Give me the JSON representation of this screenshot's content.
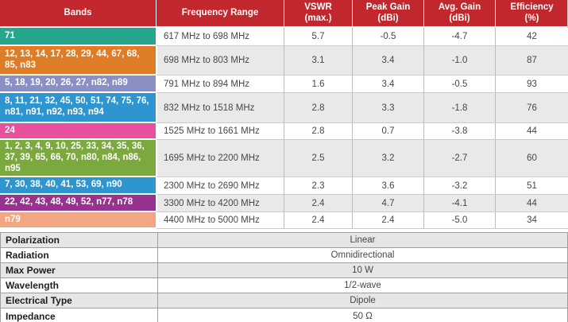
{
  "table": {
    "header_bg": "#c1272d",
    "header": [
      "Bands",
      "Frequency Range",
      "VSWR\n(max.)",
      "Peak Gain\n(dBi)",
      "Avg. Gain\n(dBi)",
      "Efficiency\n(%)"
    ],
    "rows": [
      {
        "bands": "71",
        "color": "#26a68c",
        "freq": "617 MHz to 698 MHz",
        "vswr": "5.7",
        "peak_gain": "-0.5",
        "avg_gain": "-4.7",
        "efficiency": "42"
      },
      {
        "bands": "12, 13, 14, 17, 28, 29, 44, 67, 68, 85, n83",
        "color": "#df7d26",
        "freq": "698 MHz to 803 MHz",
        "vswr": "3.1",
        "peak_gain": "3.4",
        "avg_gain": "-1.0",
        "efficiency": "87"
      },
      {
        "bands": "5, 18, 19, 20, 26, 27, n82, n89",
        "color": "#8a90c4",
        "freq": "791 MHz to 894 MHz",
        "vswr": "1.6",
        "peak_gain": "3.4",
        "avg_gain": "-0.5",
        "efficiency": "93"
      },
      {
        "bands": "8, 11, 21, 32, 45, 50, 51, 74, 75, 76, n81, n91, n92, n93, n94",
        "color": "#2f95d1",
        "freq": "832 MHz to 1518 MHz",
        "vswr": "2.8",
        "peak_gain": "3.3",
        "avg_gain": "-1.8",
        "efficiency": "76"
      },
      {
        "bands": "24",
        "color": "#e84f9c",
        "freq": "1525 MHz to 1661 MHz",
        "vswr": "2.8",
        "peak_gain": "0.7",
        "avg_gain": "-3.8",
        "efficiency": "44"
      },
      {
        "bands": "1, 2, 3, 4, 9, 10, 25, 33, 34, 35, 36, 37, 39, 65, 66, 70, n80, n84, n86, n95",
        "color": "#7ba93e",
        "freq": "1695 MHz to 2200 MHz",
        "vswr": "2.5",
        "peak_gain": "3.2",
        "avg_gain": "-2.7",
        "efficiency": "60"
      },
      {
        "bands": "7, 30, 38, 40, 41, 53, 69, n90",
        "color": "#2f95d1",
        "freq": "2300 MHz to 2690 MHz",
        "vswr": "2.3",
        "peak_gain": "3.6",
        "avg_gain": "-3.2",
        "efficiency": "51"
      },
      {
        "bands": "22, 42, 43, 48, 49, 52, n77, n78",
        "color": "#97338f",
        "freq": "3300 MHz to 4200 MHz",
        "vswr": "2.4",
        "peak_gain": "4.7",
        "avg_gain": "-4.1",
        "efficiency": "44"
      },
      {
        "bands": "n79",
        "color": "#f4a683",
        "freq": "4400 MHz to 5000 MHz",
        "vswr": "2.4",
        "peak_gain": "2.4",
        "avg_gain": "-5.0",
        "efficiency": "34"
      }
    ]
  },
  "specs": {
    "rows": [
      {
        "label": "Polarization",
        "value": "Linear"
      },
      {
        "label": "Radiation",
        "value": "Omnidirectional"
      },
      {
        "label": "Max Power",
        "value": "10 W"
      },
      {
        "label": "Wavelength",
        "value": "1/2-wave"
      },
      {
        "label": "Electrical Type",
        "value": "Dipole"
      },
      {
        "label": "Impedance",
        "value": "50 Ω"
      }
    ]
  }
}
